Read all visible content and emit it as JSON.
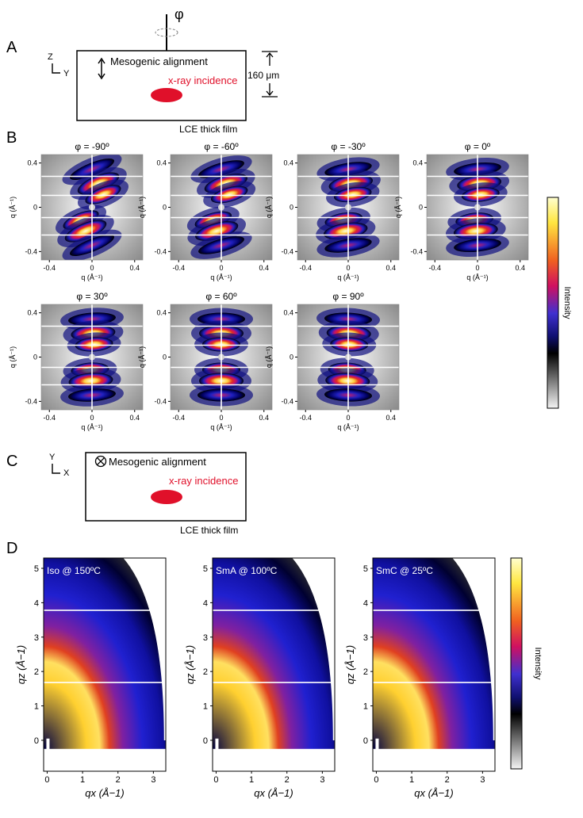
{
  "panel_labels": {
    "A": "A",
    "B": "B",
    "C": "C",
    "D": "D"
  },
  "panelA": {
    "phi_symbol": "φ",
    "axis_vertical": "Z",
    "axis_horizontal": "Y",
    "alignment_label": "Mesogenic alignment",
    "xray_label": "x-ray incidence",
    "thickness_label": "160 μm",
    "film_label": "LCE thick film"
  },
  "panelB": {
    "axis_label": "q (Å⁻¹)",
    "colorbar_label": "Intensity",
    "ticks": [
      "-0.4",
      "0",
      "0.4"
    ],
    "ytick_labels": [
      "0.4",
      "0",
      "-0.4"
    ],
    "plots": [
      {
        "title": "φ = -90º"
      },
      {
        "title": "φ = -60º"
      },
      {
        "title": "φ = -30º"
      },
      {
        "title": "φ = 0º"
      },
      {
        "title": "φ = 30º"
      },
      {
        "title": "φ = 60º"
      },
      {
        "title": "φ = 90º"
      }
    ]
  },
  "panelC": {
    "axis_vertical": "Y",
    "axis_horizontal": "X",
    "alignment_label": "Mesogenic alignment",
    "xray_label": "x-ray incidence",
    "film_label": "LCE thick film"
  },
  "panelD": {
    "xlabel": "qx (Å−1)",
    "ylabel": "qz (Å−1)",
    "colorbar_label": "Intensity",
    "xticks": [
      "0",
      "1",
      "2",
      "3"
    ],
    "yticks": [
      "0",
      "1",
      "2",
      "3",
      "4",
      "5"
    ],
    "plots": [
      {
        "title": "Iso @ 150ºC"
      },
      {
        "title": "SmA @ 100ºC"
      },
      {
        "title": "SmC @ 25ºC"
      }
    ]
  }
}
